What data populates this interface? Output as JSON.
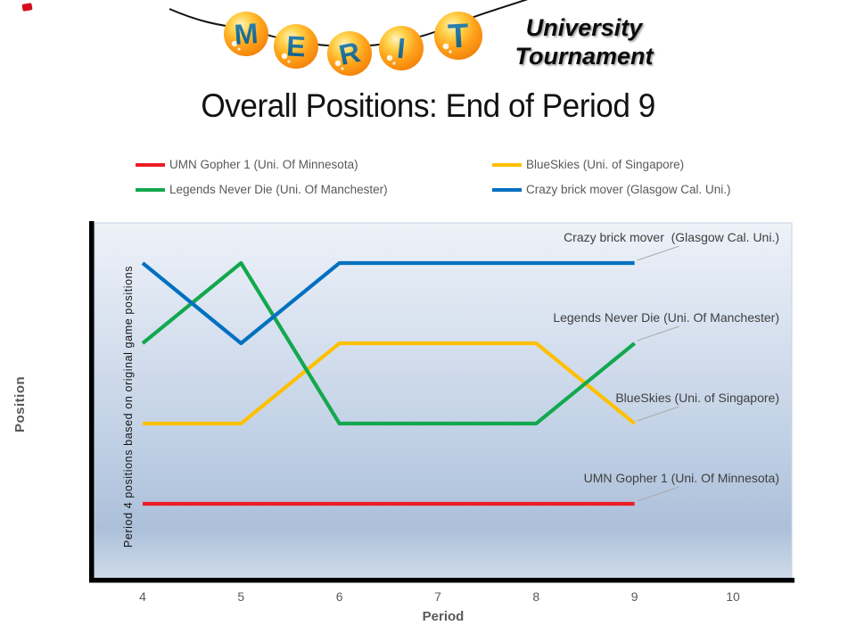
{
  "logo": {
    "letters": [
      "M",
      "E",
      "R",
      "I",
      "T"
    ],
    "subtitle": [
      "University",
      "Tournament"
    ],
    "ball_color": "#F79410",
    "letter_color": "#16628E",
    "string_color": "#111111"
  },
  "decoration": {
    "corner_mark_color": "#D40F1C"
  },
  "title": "Overall Positions: End of Period 9",
  "legend": [
    {
      "label": "UMN Gopher 1 (Uni. Of Minnesota)",
      "color": "#EE1C25"
    },
    {
      "label": "BlueSkies (Uni. of Singapore)",
      "color": "#FFC000"
    },
    {
      "label": "Legends Never Die (Uni. Of Manchester)",
      "color": "#12A84E"
    },
    {
      "label": "Crazy brick mover (Glasgow Cal. Uni.)",
      "color": "#0070C0"
    }
  ],
  "chart_data": {
    "type": "line",
    "title": "Overall Positions: End of Period 9",
    "xlabel": "Period",
    "ylabel": "Position",
    "x_ticks": [
      4,
      5,
      6,
      7,
      8,
      9,
      10
    ],
    "x": [
      4,
      5,
      6,
      7,
      8,
      9
    ],
    "y_axis_inverted": true,
    "y_range_positions": [
      1,
      4
    ],
    "y_tick_labels_visible": false,
    "grid": false,
    "legend_position": "top",
    "plot_note": "Period 4 positions based on original game positions",
    "series": [
      {
        "name": "UMN Gopher 1 (Uni. Of Minnesota)",
        "color": "#EE1C25",
        "values": [
          4,
          4,
          4,
          4,
          4,
          4
        ],
        "end_label": "UMN Gopher 1 (Uni. Of Minnesota)"
      },
      {
        "name": "BlueSkies (Uni. of Singapore)",
        "color": "#FFC000",
        "values": [
          3,
          3,
          2,
          2,
          2,
          3
        ],
        "end_label": "BlueSkies (Uni. of Singapore)"
      },
      {
        "name": "Legends Never Die (Uni. Of Manchester)",
        "color": "#12A84E",
        "values": [
          2,
          1,
          3,
          3,
          3,
          2
        ],
        "end_label": "Legends Never Die (Uni. Of Manchester)"
      },
      {
        "name": "Crazy brick mover (Glasgow Cal. Uni.)",
        "color": "#0070C0",
        "values": [
          1,
          2,
          1,
          1,
          1,
          1
        ],
        "end_label": "Crazy brick mover  (Glasgow Cal. Uni.)"
      }
    ],
    "background_gradient": [
      "#EEF2F9",
      "#C3D2E6",
      "#ACC0DA",
      "#CEDAE9"
    ],
    "axis_color": "#000000"
  }
}
